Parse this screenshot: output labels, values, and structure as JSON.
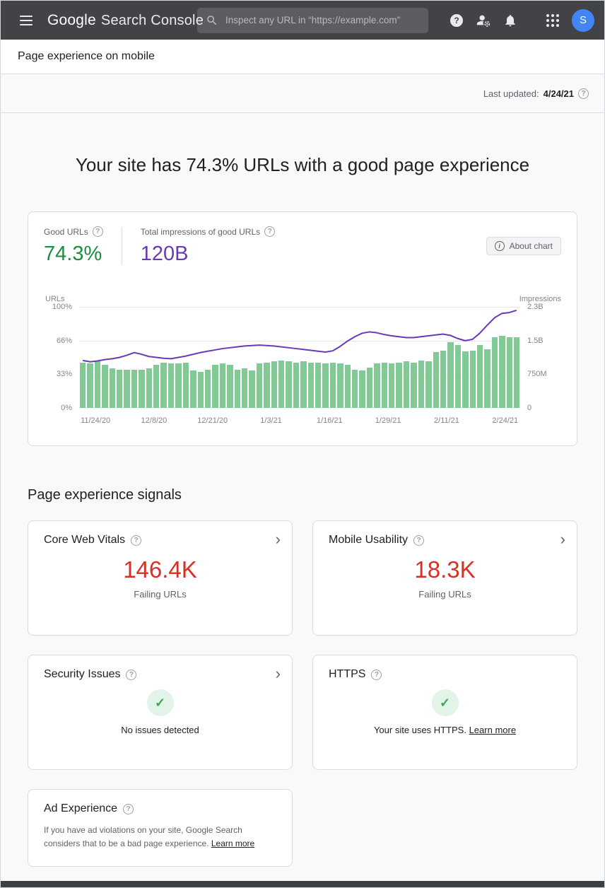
{
  "header": {
    "logo_google": "Google",
    "logo_product": "Search Console",
    "search_placeholder": "Inspect any URL in “https://example.com”",
    "avatar_letter": "S"
  },
  "icons": {
    "help_glyph": "?",
    "info_glyph": "i",
    "check_glyph": "✓",
    "chevron_glyph": "›"
  },
  "breadcrumb": "Page experience on mobile",
  "status_bar": {
    "last_updated_label": "Last updated:",
    "last_updated_date": "4/24/21"
  },
  "main": {
    "title": "Your site has 74.3% URLs with a good page experience",
    "signals_heading": "Page experience signals"
  },
  "summary": {
    "good_urls_label": "Good URLs",
    "good_urls_value": "74.3%",
    "impressions_label": "Total impressions of good URLs",
    "impressions_value": "120B",
    "about_chart_label": "About chart"
  },
  "chart_data": {
    "type": "bar+line",
    "left_axis": {
      "label": "URLs",
      "ticks": [
        "100%",
        "66%",
        "33%",
        "0%"
      ]
    },
    "right_axis": {
      "label": "Impressions",
      "ticks": [
        "2.3B",
        "1.5B",
        "750M",
        "0"
      ]
    },
    "x_labels": [
      "11/24/20",
      "12/8/20",
      "12/21/20",
      "1/3/21",
      "1/16/21",
      "1/29/21",
      "2/11/21",
      "2/24/21"
    ],
    "bars_pct_good_urls": [
      45,
      44,
      46,
      43,
      39,
      38,
      38,
      38,
      38,
      39,
      43,
      45,
      44,
      44,
      45,
      37,
      36,
      38,
      43,
      44,
      43,
      38,
      39,
      37,
      44,
      45,
      46,
      47,
      46,
      45,
      46,
      45,
      45,
      44,
      45,
      44,
      43,
      38,
      37,
      40,
      44,
      45,
      44,
      45,
      46,
      45,
      47,
      46,
      55,
      57,
      65,
      62,
      56,
      57,
      62,
      58,
      70,
      71,
      70,
      70
    ],
    "line_impressions_billions": [
      1.08,
      1.05,
      1.07,
      1.1,
      1.12,
      1.15,
      1.2,
      1.26,
      1.22,
      1.17,
      1.15,
      1.13,
      1.12,
      1.15,
      1.18,
      1.22,
      1.26,
      1.29,
      1.32,
      1.35,
      1.37,
      1.39,
      1.41,
      1.42,
      1.43,
      1.42,
      1.41,
      1.39,
      1.37,
      1.35,
      1.33,
      1.31,
      1.29,
      1.27,
      1.3,
      1.4,
      1.52,
      1.62,
      1.7,
      1.73,
      1.71,
      1.67,
      1.64,
      1.62,
      1.6,
      1.6,
      1.62,
      1.64,
      1.66,
      1.68,
      1.65,
      1.58,
      1.53,
      1.56,
      1.7,
      1.88,
      2.05,
      2.15,
      2.17,
      2.22
    ],
    "line_max_billions": 2.3,
    "bar_color": "#81c995",
    "line_color": "#673ab7"
  },
  "cards": {
    "core_web_vitals": {
      "title": "Core Web Vitals",
      "value": "146.4K",
      "caption": "Failing URLs"
    },
    "mobile_usability": {
      "title": "Mobile Usability",
      "value": "18.3K",
      "caption": "Failing URLs"
    },
    "security_issues": {
      "title": "Security Issues",
      "status": "No issues detected"
    },
    "https": {
      "title": "HTTPS",
      "status": "Your site uses HTTPS.",
      "link": "Learn more"
    },
    "ad_experience": {
      "title": "Ad Experience",
      "body": "If you have ad violations on your site, Google Search considers that to be a bad page experience.",
      "link": "Learn more"
    }
  },
  "colors": {
    "good_green": "#1e8e3e",
    "impressions_purple": "#673ab7",
    "failing_red": "#d93025",
    "avatar_blue": "#4285f4",
    "header_bg": "#414347"
  }
}
